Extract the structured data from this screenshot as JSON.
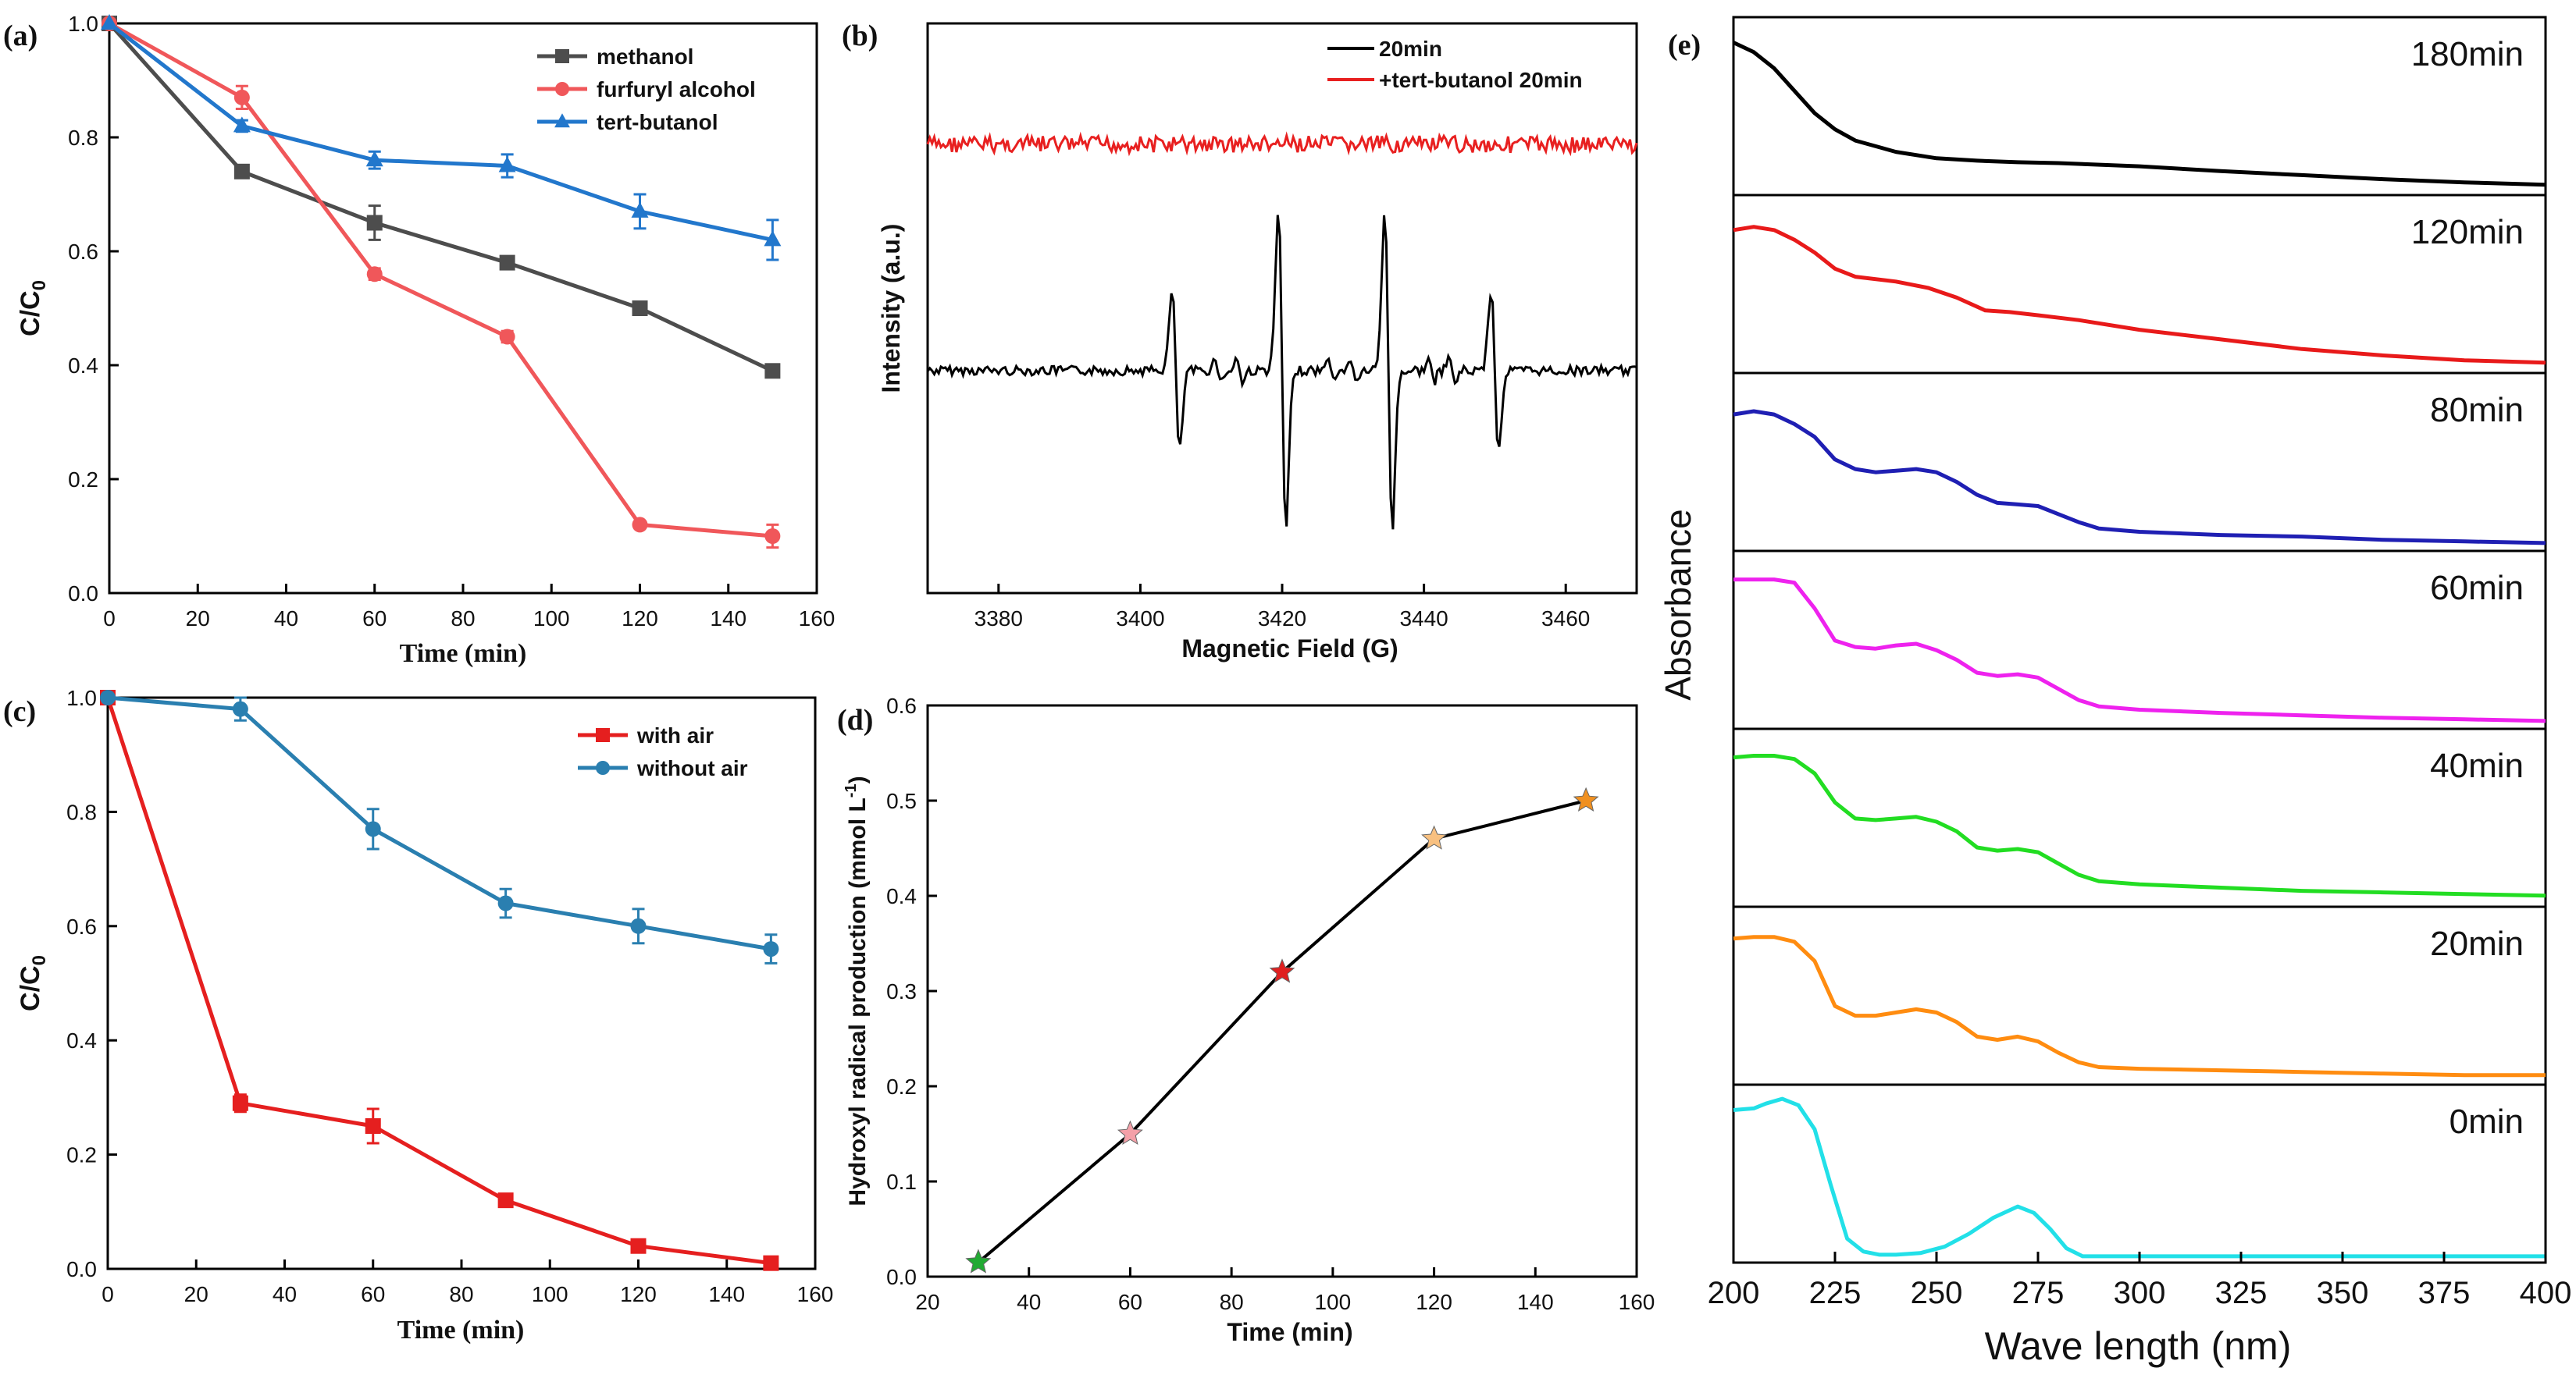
{
  "chart_data": [
    {
      "panel": "(a)",
      "type": "line",
      "xlabel": "Time (min)",
      "ylabel": "C/C0",
      "xlim": [
        0,
        160
      ],
      "ylim": [
        0,
        1.0
      ],
      "xticks": [
        "0",
        "20",
        "40",
        "60",
        "80",
        "100",
        "120",
        "140",
        "160"
      ],
      "yticks": [
        "0.0",
        "0.2",
        "0.4",
        "0.6",
        "0.8",
        "1.0"
      ],
      "legend_position": "top-right",
      "series": [
        {
          "name": "methanol",
          "color": "#4d4d4d",
          "marker": "square",
          "x": [
            0,
            30,
            60,
            90,
            120,
            150
          ],
          "y": [
            1.0,
            0.74,
            0.65,
            0.58,
            0.5,
            0.39
          ],
          "err": [
            0,
            0.01,
            0.03,
            0.005,
            0.005,
            0.005
          ]
        },
        {
          "name": "furfuryl alcohol",
          "color": "#f0575a",
          "marker": "circle",
          "x": [
            0,
            30,
            60,
            90,
            120,
            150
          ],
          "y": [
            1.0,
            0.87,
            0.56,
            0.45,
            0.12,
            0.1
          ],
          "err": [
            0,
            0.02,
            0.01,
            0.01,
            0.005,
            0.02
          ]
        },
        {
          "name": "tert-butanol",
          "color": "#2277cc",
          "marker": "triangle",
          "x": [
            0,
            30,
            60,
            90,
            120,
            150
          ],
          "y": [
            1.0,
            0.82,
            0.76,
            0.75,
            0.67,
            0.62
          ],
          "err": [
            0,
            0.01,
            0.015,
            0.02,
            0.03,
            0.035
          ]
        }
      ]
    },
    {
      "panel": "(b)",
      "type": "line",
      "xlabel": "Magnetic Field (G)",
      "ylabel": "Intensity (a.u.)",
      "xlim": [
        3370,
        3470
      ],
      "xticks": [
        "3380",
        "3400",
        "3420",
        "3440",
        "3460"
      ],
      "legend_position": "top-right",
      "series": [
        {
          "name": "20min",
          "color": "#000000"
        },
        {
          "name": "+tert-butanol 20min",
          "color": "#e82020"
        }
      ],
      "peaks_G": [
        3405,
        3420,
        3435,
        3450
      ],
      "peak_relative_heights": [
        1,
        2,
        2,
        1
      ]
    },
    {
      "panel": "(c)",
      "type": "line",
      "xlabel": "Time (min)",
      "ylabel": "C/C0",
      "xlim": [
        0,
        160
      ],
      "ylim": [
        0,
        1.0
      ],
      "xticks": [
        "0",
        "20",
        "40",
        "60",
        "80",
        "100",
        "120",
        "140",
        "160"
      ],
      "yticks": [
        "0.0",
        "0.2",
        "0.4",
        "0.6",
        "0.8",
        "1.0"
      ],
      "legend_position": "top-right",
      "series": [
        {
          "name": "with air",
          "color": "#e51f1f",
          "marker": "square",
          "x": [
            0,
            30,
            60,
            90,
            120,
            150
          ],
          "y": [
            1.0,
            0.29,
            0.25,
            0.12,
            0.04,
            0.01
          ],
          "err": [
            0,
            0.015,
            0.03,
            0.005,
            0.005,
            0.005
          ]
        },
        {
          "name": "without air",
          "color": "#2a7fb0",
          "marker": "circle",
          "x": [
            0,
            30,
            60,
            90,
            120,
            150
          ],
          "y": [
            1.0,
            0.98,
            0.77,
            0.64,
            0.6,
            0.56
          ],
          "err": [
            0,
            0.02,
            0.035,
            0.025,
            0.03,
            0.025
          ]
        }
      ]
    },
    {
      "panel": "(d)",
      "type": "line",
      "xlabel": "Time (min)",
      "ylabel": "Hydroxyl radical production (mmol L-1)",
      "xlim": [
        20,
        160
      ],
      "ylim": [
        0,
        0.6
      ],
      "xticks": [
        "20",
        "40",
        "60",
        "80",
        "100",
        "120",
        "140",
        "160"
      ],
      "yticks": [
        "0.0",
        "0.1",
        "0.2",
        "0.3",
        "0.4",
        "0.5",
        "0.6"
      ],
      "series": [
        {
          "name": "Hydroxyl radical production",
          "color": "#000000",
          "marker": "star",
          "x": [
            30,
            60,
            90,
            120,
            150
          ],
          "y": [
            0.015,
            0.15,
            0.32,
            0.46,
            0.5
          ],
          "marker_colors": [
            "#22aa33",
            "#f4a0a8",
            "#e02020",
            "#f8c080",
            "#f09020"
          ]
        }
      ]
    },
    {
      "panel": "(e)",
      "type": "line",
      "xlabel": "Wave length (nm)",
      "ylabel": "Absorbance",
      "xlim": [
        200,
        400
      ],
      "xticks": [
        "200",
        "225",
        "250",
        "275",
        "300",
        "325",
        "350",
        "375",
        "400"
      ],
      "stacked": true,
      "series": [
        {
          "name": "180min",
          "color": "#000000",
          "x": [
            200,
            205,
            210,
            215,
            220,
            225,
            230,
            240,
            250,
            260,
            270,
            280,
            300,
            320,
            340,
            360,
            380,
            400
          ],
          "y": [
            0.92,
            0.86,
            0.76,
            0.62,
            0.48,
            0.38,
            0.31,
            0.24,
            0.2,
            0.185,
            0.175,
            0.17,
            0.15,
            0.12,
            0.095,
            0.07,
            0.05,
            0.035
          ]
        },
        {
          "name": "120min",
          "color": "#e81a1a",
          "x": [
            200,
            205,
            210,
            215,
            220,
            225,
            230,
            240,
            248,
            255,
            262,
            268,
            275,
            285,
            300,
            320,
            340,
            360,
            380,
            400
          ],
          "y": [
            0.86,
            0.88,
            0.86,
            0.8,
            0.72,
            0.62,
            0.57,
            0.54,
            0.5,
            0.44,
            0.36,
            0.35,
            0.33,
            0.3,
            0.24,
            0.18,
            0.12,
            0.08,
            0.05,
            0.035
          ]
        },
        {
          "name": "80min",
          "color": "#1f1fb3",
          "x": [
            200,
            205,
            210,
            215,
            220,
            225,
            230,
            235,
            240,
            245,
            250,
            255,
            260,
            265,
            270,
            275,
            280,
            285,
            290,
            300,
            320,
            340,
            360,
            380,
            400
          ],
          "y": [
            0.82,
            0.84,
            0.82,
            0.76,
            0.68,
            0.54,
            0.48,
            0.46,
            0.47,
            0.48,
            0.46,
            0.4,
            0.32,
            0.27,
            0.26,
            0.25,
            0.2,
            0.15,
            0.11,
            0.09,
            0.07,
            0.06,
            0.04,
            0.03,
            0.02
          ]
        },
        {
          "name": "60min",
          "color": "#ee22ee",
          "x": [
            200,
            205,
            210,
            215,
            220,
            225,
            230,
            235,
            240,
            245,
            250,
            255,
            260,
            265,
            270,
            275,
            280,
            285,
            290,
            300,
            320,
            340,
            360,
            380,
            400
          ],
          "y": [
            0.9,
            0.9,
            0.9,
            0.88,
            0.72,
            0.52,
            0.48,
            0.47,
            0.49,
            0.5,
            0.46,
            0.4,
            0.32,
            0.3,
            0.31,
            0.29,
            0.22,
            0.15,
            0.11,
            0.09,
            0.07,
            0.055,
            0.04,
            0.03,
            0.02
          ]
        },
        {
          "name": "40min",
          "color": "#22dd22",
          "x": [
            200,
            205,
            210,
            215,
            220,
            225,
            230,
            235,
            240,
            245,
            250,
            255,
            260,
            265,
            270,
            275,
            280,
            285,
            290,
            300,
            320,
            340,
            360,
            380,
            400
          ],
          "y": [
            0.9,
            0.91,
            0.91,
            0.89,
            0.8,
            0.62,
            0.52,
            0.51,
            0.52,
            0.53,
            0.5,
            0.44,
            0.34,
            0.32,
            0.33,
            0.31,
            0.24,
            0.17,
            0.13,
            0.11,
            0.09,
            0.07,
            0.06,
            0.05,
            0.04
          ]
        },
        {
          "name": "20min",
          "color": "#ff8c10",
          "x": [
            200,
            205,
            210,
            215,
            220,
            225,
            230,
            235,
            240,
            245,
            250,
            255,
            260,
            265,
            270,
            275,
            280,
            285,
            290,
            300,
            320,
            340,
            360,
            380,
            400
          ],
          "y": [
            0.88,
            0.89,
            0.89,
            0.86,
            0.74,
            0.46,
            0.4,
            0.4,
            0.42,
            0.44,
            0.42,
            0.36,
            0.27,
            0.25,
            0.27,
            0.24,
            0.17,
            0.11,
            0.08,
            0.07,
            0.06,
            0.05,
            0.04,
            0.03,
            0.03
          ]
        },
        {
          "name": "0min",
          "color": "#22e0e8",
          "x": [
            200,
            205,
            208,
            212,
            216,
            220,
            224,
            228,
            232,
            236,
            240,
            246,
            252,
            258,
            264,
            270,
            274,
            278,
            282,
            286,
            290,
            300,
            320,
            350,
            400
          ],
          "y": [
            0.92,
            0.93,
            0.96,
            0.99,
            0.95,
            0.8,
            0.45,
            0.12,
            0.04,
            0.02,
            0.02,
            0.03,
            0.07,
            0.15,
            0.25,
            0.32,
            0.28,
            0.18,
            0.06,
            0.01,
            0.01,
            0.01,
            0.01,
            0.01,
            0.01
          ]
        }
      ]
    }
  ]
}
